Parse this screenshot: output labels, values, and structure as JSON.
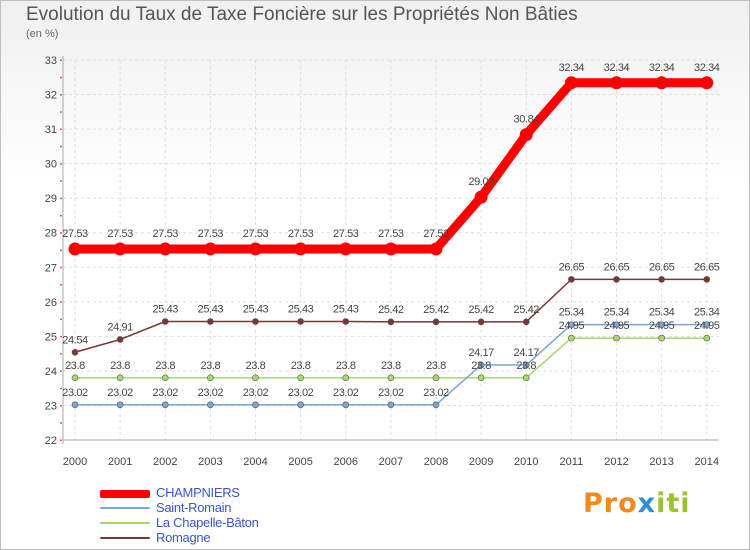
{
  "chart_data": {
    "type": "line",
    "title": "Evolution du Taux de Taxe Foncière sur les Propriétés Non Bâties",
    "ylabel": "(en %)",
    "xlabel": "",
    "ylim": [
      22,
      33
    ],
    "yticks": [
      22,
      23,
      24,
      25,
      26,
      27,
      28,
      29,
      30,
      31,
      32,
      33
    ],
    "grid": true,
    "legend_position": "bottom-left",
    "x": [
      "2000",
      "2001",
      "2002",
      "2003",
      "2004",
      "2005",
      "2006",
      "2007",
      "2008",
      "2009",
      "2010",
      "2011",
      "2012",
      "2013",
      "2014"
    ],
    "series": [
      {
        "name": "CHAMPNIERS",
        "color": "#ff0000",
        "values": [
          27.53,
          27.53,
          27.53,
          27.53,
          27.53,
          27.53,
          27.53,
          27.53,
          27.53,
          29.03,
          30.84,
          32.34,
          32.34,
          32.34,
          32.34
        ],
        "labels": [
          "27.53",
          "27.53",
          "27.53",
          "27.53",
          "27.53",
          "27.53",
          "27.53",
          "27.53",
          "27.53",
          "29.03",
          "30.84",
          "32.34",
          "32.34",
          "32.34",
          "32.34"
        ]
      },
      {
        "name": "Saint-Romain",
        "color": "#7aa6d0",
        "values": [
          23.02,
          23.02,
          23.02,
          23.02,
          23.02,
          23.02,
          23.02,
          23.02,
          23.02,
          24.17,
          24.17,
          25.34,
          25.34,
          25.34,
          25.34
        ],
        "labels": [
          "23.02",
          "23.02",
          "23.02",
          "23.02",
          "23.02",
          "23.02",
          "23.02",
          "23.02",
          "23.02",
          "24.17",
          "24.17",
          "25.34",
          "25.34",
          "25.34",
          "25.34"
        ]
      },
      {
        "name": "La Chapelle-Bâton",
        "color": "#a6d96a",
        "values": [
          23.8,
          23.8,
          23.8,
          23.8,
          23.8,
          23.8,
          23.8,
          23.8,
          23.8,
          23.8,
          23.8,
          24.95,
          24.95,
          24.95,
          24.95
        ],
        "labels": [
          "23.8",
          "23.8",
          "23.8",
          "23.8",
          "23.8",
          "23.8",
          "23.8",
          "23.8",
          "23.8",
          "23.8",
          "23.8",
          "24.95",
          "24.95",
          "24.95",
          "24.95"
        ]
      },
      {
        "name": "Romagne",
        "color": "#7a3535",
        "values": [
          24.54,
          24.91,
          25.43,
          25.43,
          25.43,
          25.43,
          25.43,
          25.42,
          25.42,
          25.42,
          25.42,
          26.65,
          26.65,
          26.65,
          26.65
        ],
        "labels": [
          "24.54",
          "24.91",
          "25.43",
          "25.43",
          "25.43",
          "25.43",
          "25.43",
          "25.42",
          "25.42",
          "25.42",
          "25.42",
          "26.65",
          "26.65",
          "26.65",
          "26.65"
        ]
      }
    ]
  },
  "logo": {
    "part1": "Pro",
    "part2": "x",
    "part3": "iti"
  }
}
